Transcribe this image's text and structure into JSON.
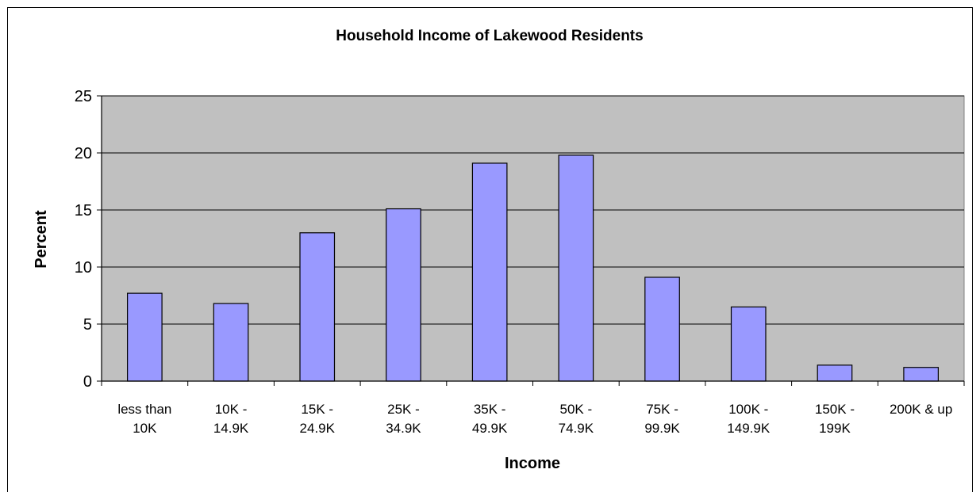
{
  "chart_data": {
    "type": "bar",
    "title": "Household Income of Lakewood Residents",
    "xlabel": "Income",
    "ylabel": "Percent",
    "categories": [
      [
        "less than",
        "10K"
      ],
      [
        "10K -",
        "14.9K"
      ],
      [
        "15K -",
        "24.9K"
      ],
      [
        "25K -",
        "34.9K"
      ],
      [
        "35K -",
        "49.9K"
      ],
      [
        "50K -",
        "74.9K"
      ],
      [
        "75K -",
        "99.9K"
      ],
      [
        "100K -",
        "149.9K"
      ],
      [
        "150K -",
        "199K"
      ],
      [
        "200K & up"
      ]
    ],
    "values": [
      7.7,
      6.8,
      13.0,
      15.1,
      19.1,
      19.8,
      9.1,
      6.5,
      1.4,
      1.2
    ],
    "ylim": [
      0,
      25
    ],
    "yticks": [
      0,
      5,
      10,
      15,
      20,
      25
    ],
    "grid": true,
    "legend": "none",
    "colors": {
      "bar_fill": "#9999ff",
      "bar_stroke": "#000000",
      "plot_background": "#c0c0c0",
      "gridline": "#000000"
    }
  }
}
